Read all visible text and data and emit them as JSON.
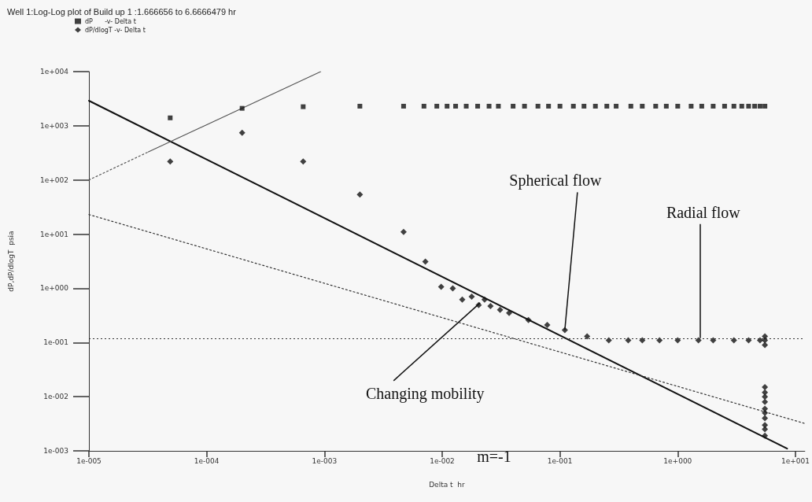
{
  "chart_data": {
    "type": "scatter",
    "title": "Well 1:Log-Log plot of Build up 1 :1.666656 to 6.6666479 hr",
    "xlabel": "Delta t  hr",
    "ylabel": "dP,dP/dlogT  psia",
    "log": "xy",
    "grid": false,
    "legend": "top left",
    "xlim": [
      1e-05,
      12
    ],
    "ylim": [
      0.001,
      10000
    ],
    "xticks": [
      {
        "value": 1e-05,
        "label": "1e-005"
      },
      {
        "value": 0.0001,
        "label": "1e-004"
      },
      {
        "value": 0.001,
        "label": "1e-003"
      },
      {
        "value": 0.01,
        "label": "1e-002"
      },
      {
        "value": 0.1,
        "label": "1e-001"
      },
      {
        "value": 1,
        "label": "1e+000"
      },
      {
        "value": 10,
        "label": "1e+001"
      }
    ],
    "yticks": [
      {
        "value": 0.001,
        "label": "1e-003"
      },
      {
        "value": 0.01,
        "label": "1e-002"
      },
      {
        "value": 0.1,
        "label": "1e-001"
      },
      {
        "value": 1,
        "label": "1e+000"
      },
      {
        "value": 10,
        "label": "1e+001"
      },
      {
        "value": 100,
        "label": "1e+002"
      },
      {
        "value": 1000,
        "label": "1e+003"
      },
      {
        "value": 10000,
        "label": "1e+004"
      }
    ],
    "series": [
      {
        "name": "dP      -v- Delta t",
        "marker": "square",
        "color": "#111111",
        "x": [
          4.9e-05,
          0.0002,
          0.00066,
          0.002,
          0.0047,
          0.007,
          0.009,
          0.011,
          0.013,
          0.016,
          0.02,
          0.025,
          0.03,
          0.04,
          0.05,
          0.065,
          0.08,
          0.1,
          0.13,
          0.16,
          0.2,
          0.25,
          0.3,
          0.4,
          0.5,
          0.65,
          0.8,
          1,
          1.3,
          1.6,
          2,
          2.5,
          3,
          3.5,
          4,
          4.5,
          5,
          5.5
        ],
        "values": [
          1400,
          2100,
          2250,
          2300,
          2300,
          2300,
          2300,
          2300,
          2300,
          2300,
          2300,
          2300,
          2300,
          2300,
          2300,
          2300,
          2300,
          2300,
          2300,
          2300,
          2300,
          2300,
          2300,
          2300,
          2300,
          2300,
          2300,
          2300,
          2300,
          2300,
          2300,
          2300,
          2300,
          2300,
          2300,
          2300,
          2300,
          2300
        ]
      },
      {
        "name": "dP/dlogT -v- Delta t",
        "marker": "diamond",
        "color": "#111111",
        "x": [
          4.9e-05,
          0.0002,
          0.00066,
          0.002,
          0.0047,
          0.0072,
          0.0098,
          0.0123,
          0.0148,
          0.0178,
          0.0204,
          0.0229,
          0.0257,
          0.031,
          0.037,
          0.054,
          0.078,
          0.11,
          0.17,
          0.26,
          0.38,
          0.5,
          0.7,
          1,
          1.5,
          2,
          3,
          4,
          5,
          5.5,
          5.5,
          5.5,
          5.5,
          5.5,
          5.5,
          5.5,
          5.5,
          5.5,
          5.5,
          5.5,
          5.5,
          5.5
        ],
        "values": [
          220,
          740,
          220,
          54,
          11,
          3.1,
          1.07,
          1.0,
          0.62,
          0.7,
          0.49,
          0.62,
          0.47,
          0.4,
          0.35,
          0.26,
          0.21,
          0.17,
          0.13,
          0.11,
          0.11,
          0.11,
          0.11,
          0.11,
          0.11,
          0.11,
          0.11,
          0.11,
          0.11,
          0.11,
          0.13,
          0.09,
          0.015,
          0.012,
          0.01,
          0.008,
          0.006,
          0.005,
          0.004,
          0.003,
          0.0025,
          0.0019
        ]
      },
      {
        "type": "line",
        "marker": "none",
        "line_style": "solid",
        "color": "#111111",
        "x": [
          1e-05,
          8.5
        ],
        "values": [
          2900,
          0.0011
        ]
      },
      {
        "type": "line",
        "marker": "none",
        "line_style": "dotted",
        "color": "#555555",
        "x": [
          1e-05,
          3.2e-05
        ],
        "values": [
          100,
          330
        ]
      },
      {
        "type": "line",
        "marker": "none",
        "line_style": "solid",
        "color": "#555555",
        "x": [
          3.2e-05,
          0.00093
        ],
        "values": [
          330,
          10000
        ]
      },
      {
        "type": "line",
        "marker": "none",
        "line_style": "dotted",
        "color": "#333333",
        "x": [
          1e-05,
          12
        ],
        "values": [
          23,
          0.0032
        ]
      }
    ],
    "ref_lines": [
      {
        "axis": "y",
        "value": 0.115,
        "line_style": "dotted",
        "color": "#333333"
      }
    ],
    "annotations": [
      {
        "text": "Spherical flow",
        "x": 0.11,
        "y": 0.17
      },
      {
        "text": "Radial flow",
        "x": 1.55,
        "y": 0.12
      },
      {
        "text": "Changing mobility",
        "x": 0.021,
        "y": 0.54
      },
      "m=-1"
    ]
  }
}
